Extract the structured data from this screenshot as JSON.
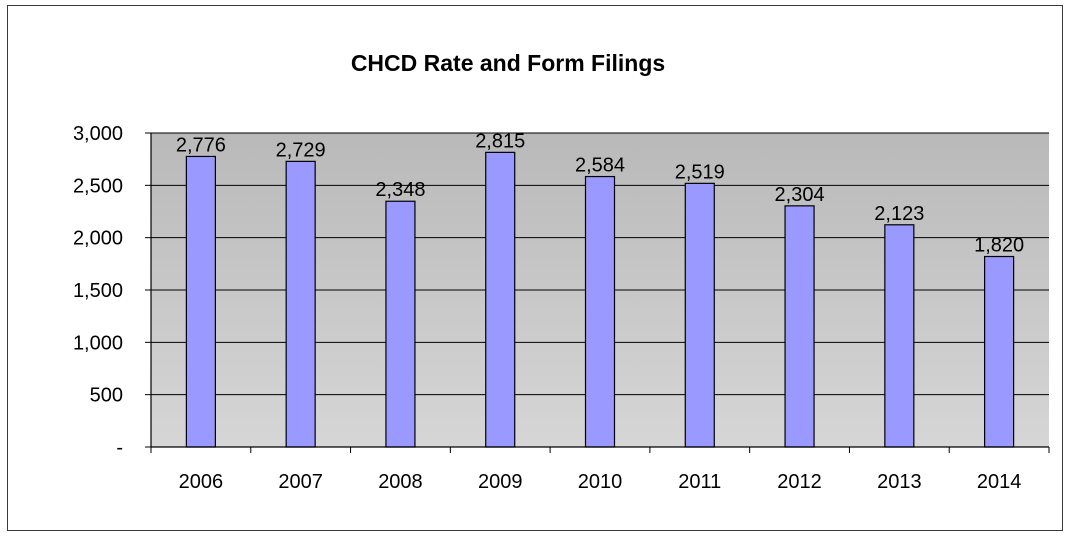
{
  "chart_data": {
    "type": "bar",
    "title": "CHCD Rate and Form Filings",
    "xlabel": "",
    "ylabel": "",
    "categories": [
      "2006",
      "2007",
      "2008",
      "2009",
      "2010",
      "2011",
      "2012",
      "2013",
      "2014"
    ],
    "values": [
      2776,
      2729,
      2348,
      2815,
      2584,
      2519,
      2304,
      2123,
      1820
    ],
    "data_labels": [
      "2,776",
      "2,729",
      "2,348",
      "2,815",
      "2,584",
      "2,519",
      "2,304",
      "2,123",
      "1,820"
    ],
    "ylim": [
      0,
      3000
    ],
    "yticks": [
      0,
      500,
      1000,
      1500,
      2000,
      2500,
      3000
    ],
    "ytick_labels": [
      "-",
      "500",
      "1,000",
      "1,500",
      "2,000",
      "2,500",
      "3,000"
    ],
    "grid": true,
    "legend": "none",
    "colors": {
      "bar_fill": "#9999ff",
      "bar_stroke": "#000000",
      "plot_background": "#c0c0c0",
      "grid_line": "#000000"
    }
  }
}
